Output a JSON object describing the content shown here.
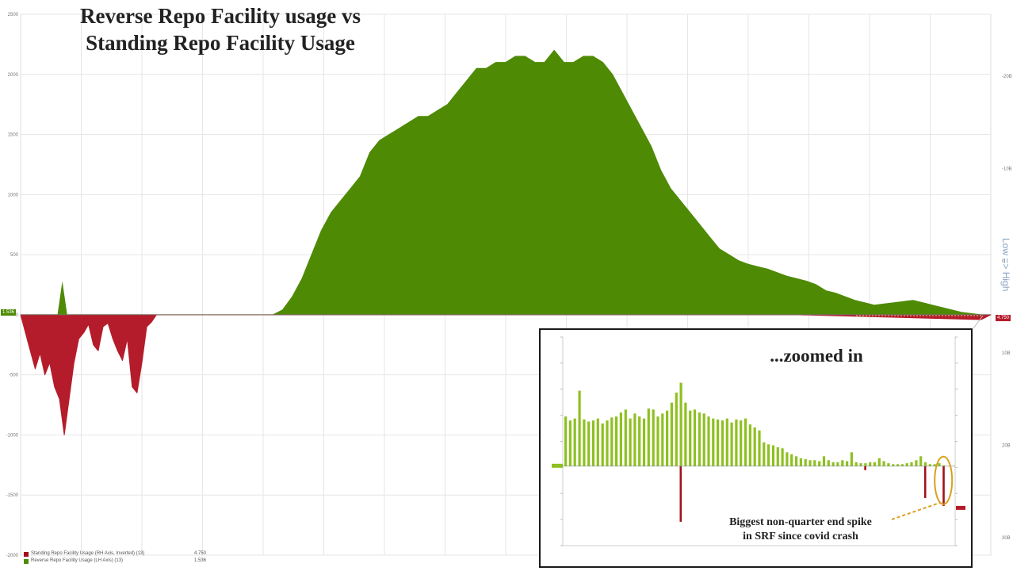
{
  "title_line1": "Reverse Repo Facility usage vs",
  "title_line2": "Standing Repo Facility Usage",
  "inset_title": "...zoomed in",
  "annotation_line1": "Biggest non-quarter end spike",
  "annotation_line2": "in SRF since covid crash",
  "right_axis_title": "Low => High",
  "legend": [
    {
      "label": "Standing Repo Facility Usage (RH Axis, Inverted) (13)",
      "value": "4.750",
      "color": "#a3101c"
    },
    {
      "label": "Reverse Repo Facility Usage (LH Axis) (13)",
      "value": "1.536",
      "color": "#4e8a04"
    }
  ],
  "colors": {
    "rrp_fill": "#4e8a04",
    "rrp_edge": "#5f9a12",
    "srf_fill": "#b51c2b",
    "inset_bar": "#8fc022",
    "inset_red": "#a3101c",
    "grid": "#e6e6e6",
    "annotation_arrow": "#d9a020"
  },
  "chart_data": [
    {
      "type": "area",
      "title": "Reverse Repo Facility usage vs Standing Repo Facility Usage",
      "xlabel": "",
      "ylabel": "",
      "ylim": [
        -2000,
        2500
      ],
      "left_ticks": [
        "2500",
        "2000",
        "1500",
        "1000",
        "500",
        "0",
        "-500",
        "-1000",
        "-1500",
        "-2000"
      ],
      "left_tick_values": [
        2500,
        2000,
        1500,
        1000,
        500,
        0,
        -500,
        -1000,
        -1500,
        -2000
      ],
      "right_ticks": [
        "-20B",
        "-10B",
        "0",
        "10B",
        "20B",
        "30B"
      ],
      "grid": true,
      "series": [
        {
          "name": "Reverse Repo Facility Usage (LH Axis)",
          "x": [
            0,
            2,
            4,
            6,
            8,
            9,
            10,
            11,
            12,
            13,
            14,
            15,
            16,
            17,
            18,
            19,
            20,
            21,
            22,
            23,
            24,
            25,
            26,
            27,
            28,
            29,
            30,
            31,
            32,
            33,
            34,
            35,
            36,
            37,
            38,
            39,
            40,
            41,
            42,
            43,
            44,
            45,
            46,
            47,
            48,
            49,
            50,
            51,
            52,
            53,
            54,
            55,
            56,
            57,
            58,
            59,
            60,
            61,
            62,
            63,
            64,
            65,
            66,
            67,
            68,
            69,
            70,
            71,
            72,
            73,
            74,
            75,
            76,
            77,
            78,
            79,
            80,
            81,
            82,
            83,
            84,
            85,
            86,
            87,
            88,
            89,
            90,
            91,
            92,
            93,
            94,
            95,
            96,
            97,
            98,
            99,
            100
          ],
          "values": [
            0,
            0,
            0,
            0,
            0,
            0,
            0,
            0,
            0,
            0,
            0,
            0,
            0,
            0,
            0,
            0,
            0,
            0,
            0,
            0,
            0,
            0,
            0,
            40,
            150,
            300,
            500,
            700,
            850,
            950,
            1050,
            1150,
            1350,
            1450,
            1500,
            1550,
            1600,
            1650,
            1650,
            1700,
            1750,
            1850,
            1950,
            2050,
            2050,
            2100,
            2100,
            2150,
            2150,
            2100,
            2100,
            2200,
            2100,
            2100,
            2150,
            2150,
            2100,
            2000,
            1850,
            1700,
            1550,
            1400,
            1200,
            1050,
            950,
            850,
            750,
            650,
            550,
            500,
            450,
            420,
            400,
            380,
            350,
            320,
            300,
            280,
            250,
            200,
            180,
            150,
            120,
            100,
            80,
            90,
            100,
            110,
            120,
            100,
            80,
            60,
            40,
            20,
            10,
            0,
            0
          ],
          "color": "#4e8a04"
        },
        {
          "name": "Standing Repo Facility Usage (RH Axis, Inverted)",
          "x": [
            0,
            1,
            1.5,
            2,
            2.5,
            3,
            3.5,
            4,
            4.5,
            5,
            5.5,
            6,
            6.5,
            7,
            7.5,
            8,
            8.5,
            9,
            9.5,
            10,
            10.5,
            11,
            11.5,
            12,
            12.5,
            13,
            13.5,
            14,
            20,
            40,
            60,
            80,
            99,
            100
          ],
          "values": [
            0,
            -300,
            -450,
            -320,
            -500,
            -400,
            -600,
            -700,
            -1000,
            -700,
            -400,
            -200,
            -150,
            -80,
            -250,
            -300,
            -100,
            -70,
            -200,
            -300,
            -380,
            -200,
            -600,
            -650,
            -400,
            -100,
            -60,
            0,
            0,
            0,
            0,
            0,
            -40,
            0
          ],
          "color": "#b51c2b"
        }
      ]
    },
    {
      "type": "bar",
      "title": "...zoomed in",
      "xlabel": "",
      "ylabel": "",
      "ylim": [
        -400,
        650
      ],
      "series": [
        {
          "name": "Reverse Repo Facility Usage",
          "values": [
            250,
            230,
            240,
            380,
            235,
            225,
            230,
            240,
            215,
            230,
            245,
            250,
            270,
            285,
            240,
            265,
            250,
            240,
            290,
            285,
            250,
            265,
            280,
            320,
            370,
            420,
            320,
            280,
            285,
            270,
            265,
            250,
            240,
            235,
            230,
            240,
            220,
            235,
            230,
            240,
            210,
            195,
            180,
            120,
            110,
            105,
            95,
            90,
            70,
            60,
            50,
            40,
            35,
            30,
            30,
            25,
            50,
            30,
            20,
            20,
            30,
            25,
            70,
            20,
            15,
            15,
            20,
            20,
            40,
            25,
            15,
            10,
            10,
            10,
            15,
            20,
            30,
            50,
            20,
            10,
            10,
            15,
            5
          ],
          "color": "#8fc022"
        },
        {
          "name": "Standing Repo Facility Usage",
          "x_index": [
            25,
            65,
            78,
            82
          ],
          "values": [
            -280,
            -20,
            -160,
            -200
          ],
          "color": "#a3101c"
        }
      ]
    }
  ]
}
